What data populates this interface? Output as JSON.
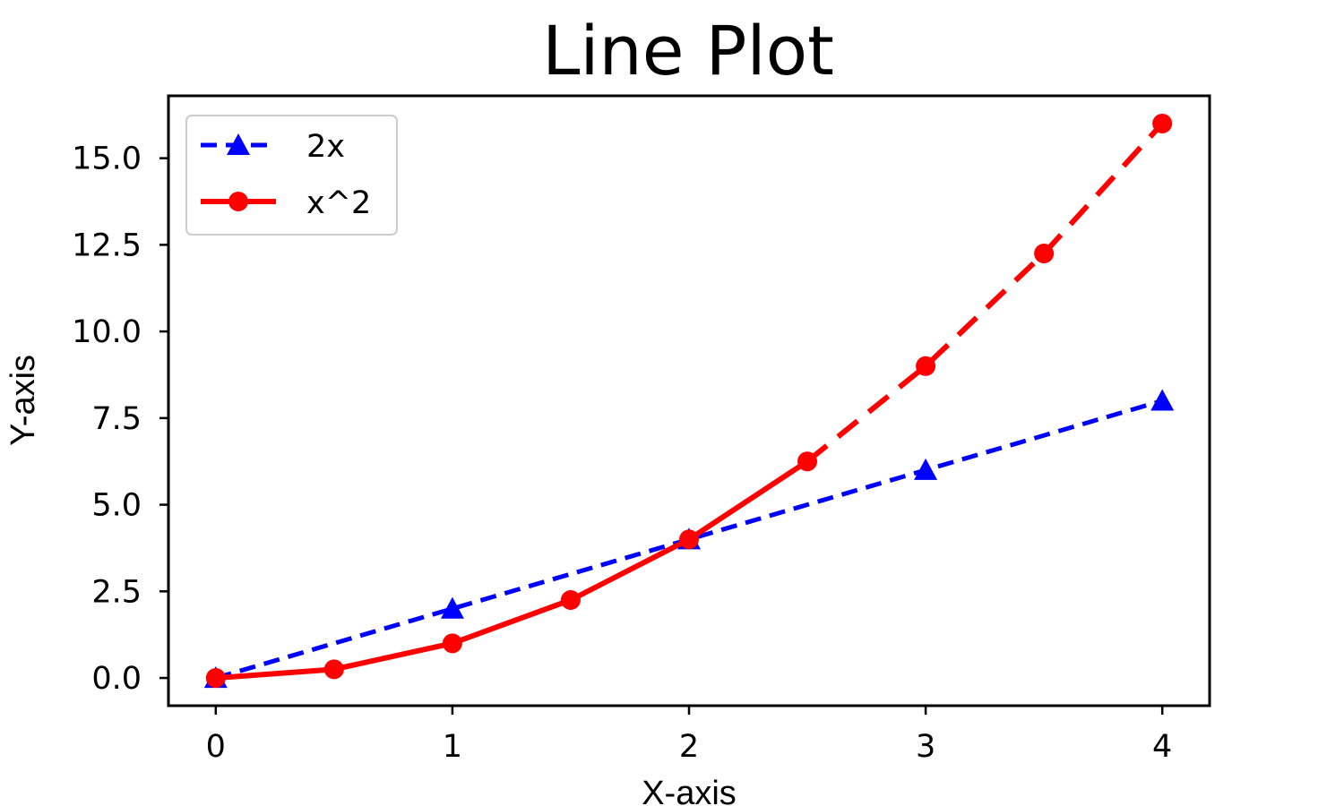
{
  "chart_data": {
    "type": "line",
    "title": "Line Plot",
    "xlabel": "X-axis",
    "ylabel": "Y-axis",
    "xlim": [
      -0.2,
      4.2
    ],
    "ylim": [
      -0.8,
      16.8
    ],
    "xticks": [
      0,
      1,
      2,
      3,
      4
    ],
    "xtick_labels": [
      "0",
      "1",
      "2",
      "3",
      "4"
    ],
    "yticks": [
      0,
      2.5,
      5,
      7.5,
      10,
      12.5,
      15
    ],
    "ytick_labels": [
      "0.0",
      "2.5",
      "5.0",
      "7.5",
      "10.0",
      "12.5",
      "15.0"
    ],
    "grid": false,
    "legend_placement": "upper-left",
    "series": [
      {
        "name": "2x",
        "color": "#0000ff",
        "marker": "triangle",
        "linestyle": "dashed",
        "x": [
          0,
          1,
          2,
          3,
          4
        ],
        "y": [
          0,
          2,
          4,
          6,
          8
        ]
      },
      {
        "name": "x^2",
        "color": "#ff0000",
        "marker": "circle",
        "linestyle": "solid-then-dashed",
        "solid_until_x": 2.5,
        "x": [
          0,
          0.5,
          1,
          1.5,
          2,
          2.5,
          3,
          3.5,
          4
        ],
        "y": [
          0,
          0.25,
          1,
          2.25,
          4,
          6.25,
          9,
          12.25,
          16
        ]
      }
    ]
  }
}
